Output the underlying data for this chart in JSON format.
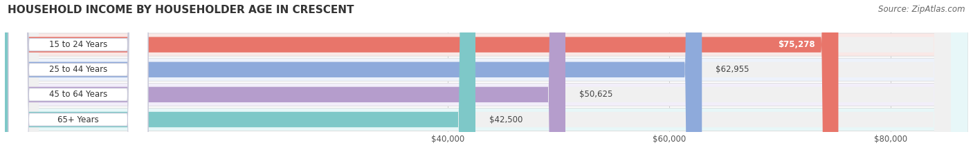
{
  "title": "HOUSEHOLD INCOME BY HOUSEHOLDER AGE IN CRESCENT",
  "source": "Source: ZipAtlas.com",
  "categories": [
    "15 to 24 Years",
    "25 to 44 Years",
    "45 to 64 Years",
    "65+ Years"
  ],
  "values": [
    75278,
    62955,
    50625,
    42500
  ],
  "labels": [
    "$75,278",
    "$62,955",
    "$50,625",
    "$42,500"
  ],
  "bar_colors": [
    "#e8756a",
    "#8eaadb",
    "#b59dcc",
    "#7ec8c8"
  ],
  "xmin": 0,
  "xmax": 87000,
  "xticks": [
    40000,
    60000,
    80000
  ],
  "xticklabels": [
    "$40,000",
    "$60,000",
    "$80,000"
  ],
  "background_color": "#ffffff",
  "row_bg_colors": [
    "#fae8e6",
    "#edf2fb",
    "#f2eefa",
    "#e7f7f8"
  ],
  "track_bg_color": "#f0f0f0",
  "title_fontsize": 11,
  "source_fontsize": 8.5,
  "label_fontsize": 8.5,
  "tick_fontsize": 8.5,
  "cat_label_fontsize": 8.5,
  "label_inside_color": "white",
  "label_outside_color": "#444444",
  "cat_label_color": "#333333"
}
